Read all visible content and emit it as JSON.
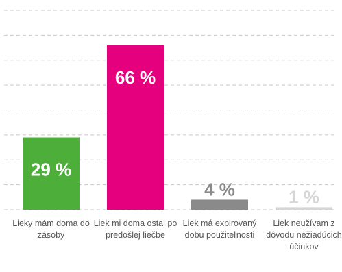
{
  "chart_data": {
    "type": "bar",
    "categories": [
      "Lieky mám doma do zásoby",
      "Liek mi doma ostal po predošlej liečbe",
      "Liek má expirovaný dobu použiteľnosti",
      "Liek neužívam z dôvodu nežiadúcich účinkov"
    ],
    "values": [
      29,
      66,
      4,
      1
    ],
    "value_labels": [
      "29 %",
      "66 %",
      "4 %",
      "1 %"
    ],
    "colors": [
      "#4dae3a",
      "#e5007d",
      "#8a8a8a",
      "#d6d6d6"
    ],
    "ylim": [
      0,
      80
    ],
    "yticks": [
      0,
      10,
      20,
      30,
      40,
      50,
      60,
      70,
      80
    ],
    "grid": true
  }
}
